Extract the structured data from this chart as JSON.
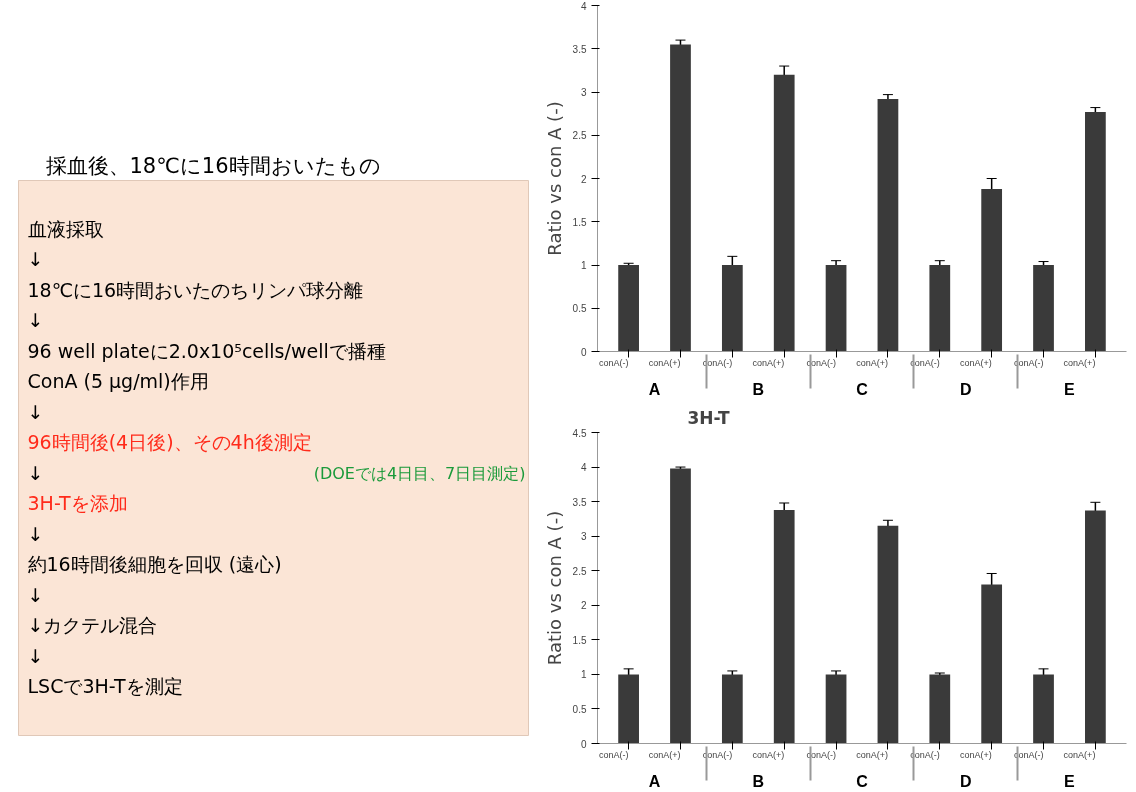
{
  "chart_data": [
    {
      "type": "other",
      "title": "採血後、18℃に16時間おいたもの",
      "annotations": [
        "血液採取",
        "↓",
        "18℃に16時間おいたのちリンパ球分離",
        "↓",
        "96 well plateに2.0x10⁵cells/wellで播種",
        "ConA (5 μg/ml)作用",
        "↓",
        "96時間後(4日後)、その4h後測定",
        "↓",
        "(DOEでは4日目、7日目測定)",
        "3H-Tを添加",
        "↓",
        "約16時間後細胞を回収 (遠心)",
        "↓",
        "↓カクテル混合",
        "↓",
        "LSCで3H-Tを測定"
      ],
      "colors": [
        "#000000",
        "#000000",
        "#000000",
        "#000000",
        "#000000",
        "#000000",
        "#000000",
        "#ff2a1a",
        "#000000",
        "#1a9a3a",
        "#ff2a1a",
        "#000000",
        "#000000",
        "#000000",
        "#000000",
        "#000000",
        "#000000"
      ]
    },
    {
      "type": "bar",
      "ylabel": "Ratio vs con A (-)",
      "categories": [
        "conA(-)",
        "conA(+)",
        "conA(-)",
        "conA(+)",
        "conA(-)",
        "conA(+)",
        "conA(-)",
        "conA(+)",
        "conA(-)",
        "conA(+)"
      ],
      "annotations": [
        "A",
        "B",
        "C",
        "D",
        "E"
      ],
      "values": [
        1.0,
        3.55,
        1.0,
        3.2,
        1.0,
        2.92,
        1.0,
        1.88,
        1.0,
        2.77
      ],
      "errors": [
        0.02,
        0.05,
        0.1,
        0.1,
        0.05,
        0.05,
        0.05,
        0.12,
        0.04,
        0.05
      ],
      "color": "#3a3a3a",
      "ylim": [
        0,
        4
      ],
      "yticks": [
        0,
        0.5,
        1,
        1.5,
        2,
        2.5,
        3,
        3.5,
        4
      ],
      "grid": false
    },
    {
      "type": "bar",
      "title": "3H-T",
      "ylabel": "Ratio vs con A (-)",
      "categories": [
        "conA(-)",
        "conA(+)",
        "conA(-)",
        "conA(+)",
        "conA(-)",
        "conA(+)",
        "conA(-)",
        "conA(+)",
        "conA(-)",
        "conA(+)"
      ],
      "annotations": [
        "A",
        "B",
        "C",
        "D",
        "E"
      ],
      "values": [
        1.0,
        3.98,
        1.0,
        3.38,
        1.0,
        3.15,
        1.0,
        2.3,
        1.0,
        3.37
      ],
      "errors": [
        0.08,
        0.02,
        0.05,
        0.1,
        0.05,
        0.08,
        0.02,
        0.16,
        0.08,
        0.12
      ],
      "color": "#3a3a3a",
      "ylim": [
        0,
        4.5
      ],
      "yticks": [
        0,
        0.5,
        1,
        1.5,
        2,
        2.5,
        3,
        3.5,
        4,
        4.5
      ],
      "grid": false
    }
  ]
}
